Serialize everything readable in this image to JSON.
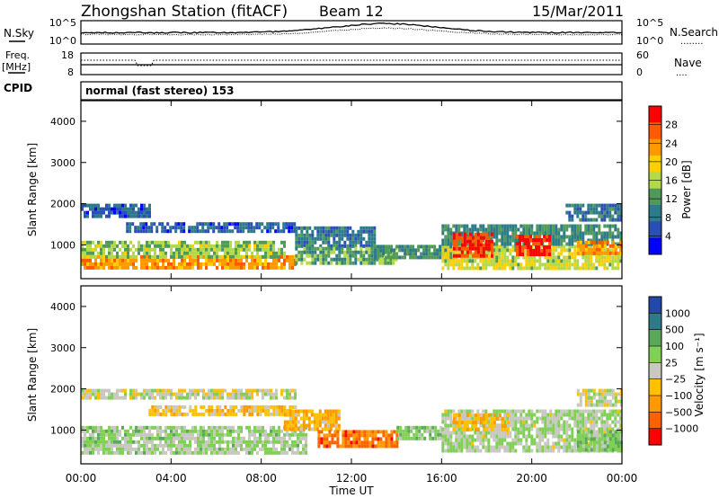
{
  "header": {
    "title": "Zhongshan Station (fitACF)",
    "beam": "Beam 12",
    "date": "15/Mar/2011"
  },
  "sky_panel": {
    "left_label": "N.Sky",
    "right_label": "N.Search",
    "right_marker": "........",
    "left_ticks": [
      "10^5",
      "10^0"
    ],
    "right_ticks": [
      "10^5",
      "10^0"
    ]
  },
  "freq_panel": {
    "left_label_line1": "Freq.",
    "left_label_line2": "[MHz]",
    "right_label": "Nave",
    "right_marker": "....",
    "left_ticks": [
      "18",
      "8"
    ],
    "right_ticks": [
      "60",
      "0"
    ]
  },
  "cpid": {
    "label": "CPID",
    "value": "normal (fast stereo) 153"
  },
  "chart_data": [
    {
      "type": "heatmap",
      "name": "power",
      "ylabel": "Slant Range [km]",
      "yticks": [
        "4000",
        "3000",
        "2000",
        "1000"
      ],
      "ylim": [
        180,
        4500
      ],
      "xlim_hours": [
        0,
        24
      ],
      "colorbar_label": "Power [dB]",
      "colorbar_ticks": [
        "28",
        "24",
        "20",
        "16",
        "12",
        "8",
        "4"
      ],
      "colorbar_colors": [
        "#ff0000",
        "#ff5a00",
        "#ff9900",
        "#ffd000",
        "#b3d94a",
        "#4f9a5a",
        "#2c7a8a",
        "#2a4fb5",
        "#0000ff"
      ],
      "color_scale": [
        0,
        30
      ],
      "bands": [
        {
          "x": [
            0.0,
            9.5
          ],
          "y": [
            450,
            750
          ],
          "value": 22
        },
        {
          "x": [
            0.0,
            9.0
          ],
          "y": [
            750,
            1100
          ],
          "value": 14
        },
        {
          "x": [
            0.0,
            3.0
          ],
          "y": [
            1700,
            2000
          ],
          "value": 6
        },
        {
          "x": [
            2.0,
            9.5
          ],
          "y": [
            1300,
            1550
          ],
          "value": 6
        },
        {
          "x": [
            9.5,
            13.0
          ],
          "y": [
            1000,
            1450
          ],
          "value": 8
        },
        {
          "x": [
            9.5,
            14.0
          ],
          "y": [
            550,
            950
          ],
          "value": 12
        },
        {
          "x": [
            13.0,
            16.5
          ],
          "y": [
            700,
            1000
          ],
          "value": 10
        },
        {
          "x": [
            16.0,
            24.0
          ],
          "y": [
            450,
            1000
          ],
          "value": 16
        },
        {
          "x": [
            16.0,
            24.0
          ],
          "y": [
            1000,
            1500
          ],
          "value": 10
        },
        {
          "x": [
            16.5,
            18.2
          ],
          "y": [
            700,
            1300
          ],
          "value": 27
        },
        {
          "x": [
            19.3,
            20.8
          ],
          "y": [
            750,
            1250
          ],
          "value": 27
        },
        {
          "x": [
            21.5,
            24.0
          ],
          "y": [
            1600,
            2000
          ],
          "value": 8
        },
        {
          "x": [
            22.0,
            24.0
          ],
          "y": [
            800,
            1100
          ],
          "value": 22
        }
      ]
    },
    {
      "type": "heatmap",
      "name": "velocity",
      "ylabel": "Slant Range [km]",
      "yticks": [
        "4000",
        "3000",
        "2000",
        "1000"
      ],
      "ylim": [
        180,
        4500
      ],
      "xlim_hours": [
        0,
        24
      ],
      "xticks": [
        "00:00",
        "04:00",
        "08:00",
        "12:00",
        "16:00",
        "20:00",
        "00:00"
      ],
      "xlabel": "Time UT",
      "colorbar_label": "Velocity [m s⁻¹]",
      "colorbar_ticks": [
        "1000",
        "500",
        "100",
        "25",
        "−25",
        "−100",
        "−500",
        "−1000"
      ],
      "colorbar_colors": [
        "#2448a8",
        "#2f7a8a",
        "#5aa85a",
        "#7fd055",
        "#c8c8c0",
        "#ffc000",
        "#ff9900",
        "#ff6000",
        "#ff0000"
      ],
      "color_scale": [
        -1000,
        1000
      ],
      "bands": [
        {
          "x": [
            0.0,
            9.5
          ],
          "y": [
            1750,
            2000
          ],
          "value": 0
        },
        {
          "x": [
            3.0,
            9.5
          ],
          "y": [
            1350,
            1600
          ],
          "value": -200
        },
        {
          "x": [
            0.0,
            10.0
          ],
          "y": [
            450,
            1100
          ],
          "value": 150
        },
        {
          "x": [
            9.0,
            11.5
          ],
          "y": [
            1000,
            1500
          ],
          "value": -300
        },
        {
          "x": [
            10.5,
            14.0
          ],
          "y": [
            600,
            1000
          ],
          "value": -600
        },
        {
          "x": [
            14.0,
            16.0
          ],
          "y": [
            800,
            1100
          ],
          "value": 200
        },
        {
          "x": [
            16.0,
            24.0
          ],
          "y": [
            500,
            1500
          ],
          "value": 100
        },
        {
          "x": [
            16.5,
            19.0
          ],
          "y": [
            1000,
            1400
          ],
          "value": -250
        },
        {
          "x": [
            22.0,
            24.0
          ],
          "y": [
            1600,
            2000
          ],
          "value": 0
        },
        {
          "x": [
            22.0,
            24.0
          ],
          "y": [
            500,
            1000
          ],
          "value": 250
        }
      ]
    }
  ]
}
